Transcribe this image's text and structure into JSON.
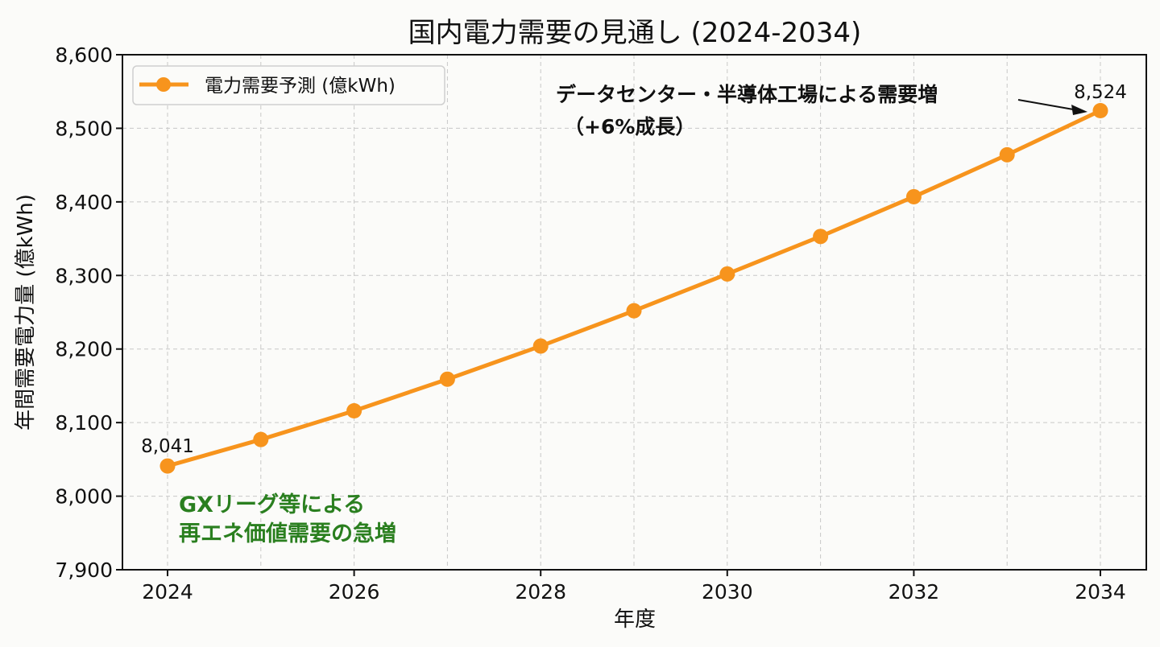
{
  "chart_data": {
    "type": "line",
    "title": "国内電力需要の見通し (2024-2034)",
    "xlabel": "年度",
    "ylabel": "年間需要電力量 (億kWh)",
    "x": [
      2024,
      2025,
      2026,
      2027,
      2028,
      2029,
      2030,
      2031,
      2032,
      2033,
      2034
    ],
    "series": [
      {
        "name": "電力需要予測 (億kWh)",
        "color": "#f7941d",
        "marker": "circle",
        "values": [
          8041,
          8077,
          8116,
          8159,
          8204,
          8252,
          8302,
          8353,
          8407,
          8464,
          8524
        ]
      }
    ],
    "xlim": [
      2023.5,
      2034.5
    ],
    "ylim": [
      7900,
      8600
    ],
    "xticks": [
      "2024",
      "2026",
      "2028",
      "2030",
      "2032",
      "2034"
    ],
    "yticks": [
      "7,900",
      "8,000",
      "8,100",
      "8,200",
      "8,300",
      "8,400",
      "8,500",
      "8,600"
    ],
    "grid": true,
    "legend_position": "upper left",
    "data_labels": [
      {
        "x": 2024,
        "text": "8,041"
      },
      {
        "x": 2034,
        "text": "8,524"
      }
    ],
    "annotations": [
      {
        "text_line1": "データセンター・半導体工場による需要増",
        "text_line2": "（+6%成長）",
        "color": "#111111",
        "arrow_to": 2034
      },
      {
        "text_line1": "GXリーグ等による",
        "text_line2": "再エネ価値需要の急増",
        "color": "#2a7f1f"
      }
    ]
  },
  "labels": {
    "title": "国内電力需要の見通し (2024-2034)",
    "xlabel": "年度",
    "ylabel": "年間需要電力量 (億kWh)",
    "legend": "電力需要予測 (億kWh)",
    "annot_top_1": "データセンター・半導体工場による需要増",
    "annot_top_2": "（+6%成長）",
    "annot_bottom_1": "GXリーグ等による",
    "annot_bottom_2": "再エネ価値需要の急増",
    "label_first": "8,041",
    "label_last": "8,524"
  }
}
